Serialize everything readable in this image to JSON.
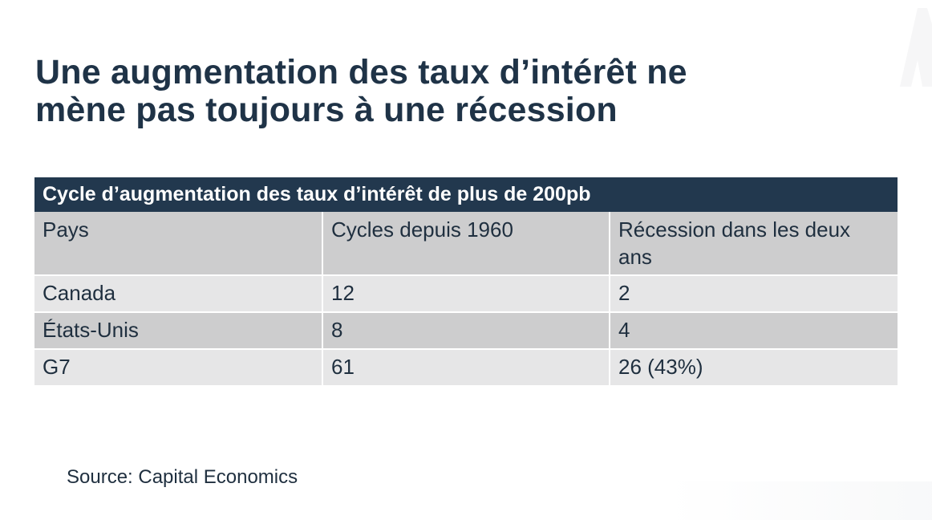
{
  "title": {
    "line1": "Une augmentation des taux d’intérêt ne",
    "line2": "mène pas toujours à une récession"
  },
  "table": {
    "caption": "Cycle d’augmentation des taux d’intérêt de plus de 200pb",
    "headers": [
      "Pays",
      "Cycles depuis 1960",
      "Récession dans les deux ans"
    ],
    "rows": [
      [
        "Canada",
        "12",
        "2"
      ],
      [
        "États-Unis",
        "8",
        "4"
      ],
      [
        "G7",
        "61",
        "26 (43%)"
      ]
    ]
  },
  "source": "Source: Capital Economics",
  "colors": {
    "title": "#1f3347",
    "caption_bg": "#22384e",
    "row_dark": "#cdcdce",
    "row_light": "#e6e6e7"
  }
}
